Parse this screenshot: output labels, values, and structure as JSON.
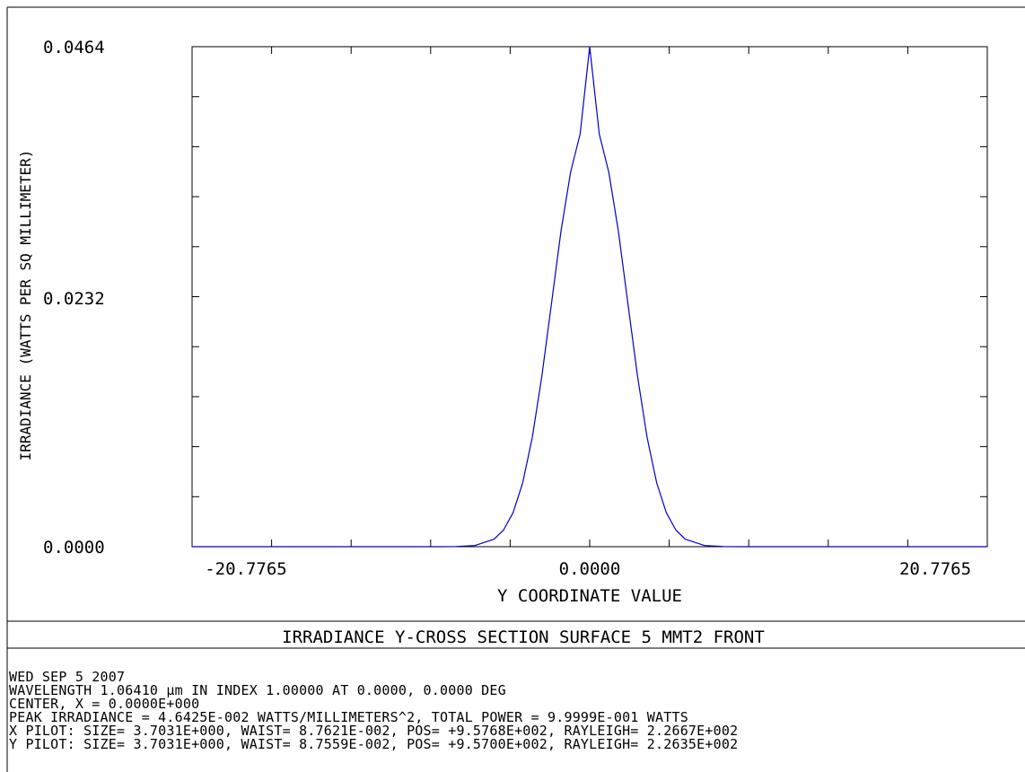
{
  "chart_data": {
    "type": "line",
    "title": "IRRADIANCE Y-CROSS SECTION SURFACE 5 MMT2 FRONT",
    "xlabel": "Y COORDINATE VALUE",
    "ylabel": "IRRADIANCE (WATTS PER SQ MILLIMETER)",
    "xlim": [
      -41.553,
      41.553
    ],
    "ylim": [
      0.0,
      0.0464
    ],
    "x_tick_labels": [
      "-20.7765",
      "0.0000",
      "20.7765"
    ],
    "y_tick_labels": [
      "0.0000",
      "0.0232",
      "0.0464"
    ],
    "grid": false,
    "legend": "none",
    "line_color": "#0000cc",
    "series": [
      {
        "x": [
          -41.553,
          -20,
          -16,
          -14,
          -12,
          -10,
          -9,
          -8,
          -7,
          -6,
          -5,
          -4,
          -3,
          -2,
          -1,
          0,
          1,
          2,
          3,
          4,
          5,
          6,
          7,
          8,
          9,
          10,
          12,
          14,
          16,
          20,
          41.553
        ],
        "values": [
          0.0,
          0.0,
          0.0,
          1e-05,
          0.00011,
          0.00069,
          0.00155,
          0.00317,
          0.00593,
          0.01013,
          0.01581,
          0.02252,
          0.02928,
          0.03474,
          0.0383,
          0.0464,
          0.0383,
          0.03474,
          0.02928,
          0.02252,
          0.01581,
          0.01013,
          0.00593,
          0.00317,
          0.00155,
          0.00069,
          0.00011,
          1e-05,
          0.0,
          0.0,
          0.0
        ]
      }
    ]
  },
  "info": {
    "date": "WED SEP 5 2007",
    "wavelength": "WAVELENGTH 1.06410 µm IN INDEX 1.00000 AT 0.0000, 0.0000 DEG",
    "center": "CENTER, X = 0.0000E+000",
    "peak": "PEAK IRRADIANCE = 4.6425E-002 WATTS/MILLIMETERS^2, TOTAL POWER = 9.9999E-001 WATTS",
    "x_pilot": "X PILOT: SIZE= 3.7031E+000, WAIST= 8.7621E-002, POS= +9.5768E+002, RAYLEIGH= 2.2667E+002",
    "y_pilot": "Y PILOT: SIZE= 3.7031E+000, WAIST= 8.7559E-002, POS= +9.5700E+002, RAYLEIGH= 2.2635E+002"
  }
}
